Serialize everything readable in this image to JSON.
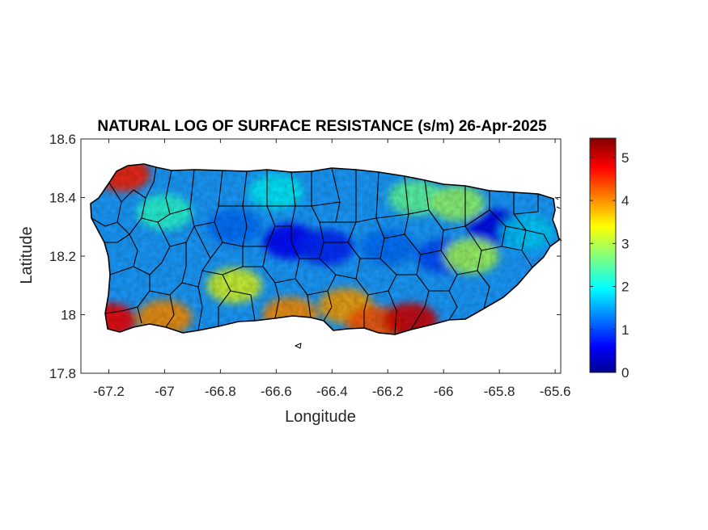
{
  "figure": {
    "title": "NATURAL LOG OF SURFACE RESISTANCE (s/m) 26-Apr-2025",
    "xlabel": "Longitude",
    "ylabel": "Latitude"
  },
  "chart_data": {
    "type": "heatmap",
    "title": "NATURAL LOG OF SURFACE RESISTANCE (s/m) 26-Apr-2025",
    "xlabel": "Longitude",
    "ylabel": "Latitude",
    "xlim": [
      -67.3,
      -65.58
    ],
    "ylim": [
      17.8,
      18.6
    ],
    "xticks": [
      -67.2,
      -67,
      -66.8,
      -66.6,
      -66.4,
      -66.2,
      -66,
      -65.8,
      -65.6
    ],
    "xtick_labels": [
      "-67.2",
      "-67",
      "-66.8",
      "-66.6",
      "-66.4",
      "-66.2",
      "-66",
      "-65.8",
      "-65.6"
    ],
    "yticks": [
      17.8,
      18,
      18.2,
      18.4,
      18.6
    ],
    "ytick_labels": [
      "17.8",
      "18",
      "18.2",
      "18.4",
      "18.6"
    ],
    "colormap": "jet",
    "colorbar": {
      "range": [
        0,
        5.45
      ],
      "ticks": [
        0,
        1,
        2,
        3,
        4,
        5
      ],
      "tick_labels": [
        "0",
        "1",
        "2",
        "3",
        "4",
        "5"
      ],
      "placement": "right"
    },
    "grid": false,
    "colors": {
      "low": "#00008f",
      "mid": "#00ffff",
      "high": "#800000",
      "boundaries": "#000000"
    },
    "regional_values": [
      {
        "lon": -67.15,
        "lat": 18.48,
        "value": 4.6
      },
      {
        "lon": -67.2,
        "lat": 17.98,
        "value": 4.8
      },
      {
        "lon": -67.0,
        "lat": 17.99,
        "value": 4.0
      },
      {
        "lon": -66.75,
        "lat": 18.1,
        "value": 3.2
      },
      {
        "lon": -66.55,
        "lat": 18.0,
        "value": 4.0
      },
      {
        "lon": -66.35,
        "lat": 18.03,
        "value": 3.9
      },
      {
        "lon": -66.25,
        "lat": 17.97,
        "value": 4.3
      },
      {
        "lon": -66.12,
        "lat": 17.98,
        "value": 5.0
      },
      {
        "lon": -66.55,
        "lat": 18.25,
        "value": 0.6
      },
      {
        "lon": -66.42,
        "lat": 18.23,
        "value": 0.8
      },
      {
        "lon": -66.2,
        "lat": 18.23,
        "value": 1.2
      },
      {
        "lon": -65.82,
        "lat": 18.3,
        "value": 0.5
      },
      {
        "lon": -66.0,
        "lat": 18.2,
        "value": 1.0
      },
      {
        "lon": -66.1,
        "lat": 18.4,
        "value": 2.5
      },
      {
        "lon": -65.95,
        "lat": 18.38,
        "value": 2.8
      },
      {
        "lon": -65.9,
        "lat": 18.2,
        "value": 2.9
      },
      {
        "lon": -66.6,
        "lat": 18.42,
        "value": 1.9
      },
      {
        "lon": -67.0,
        "lat": 18.35,
        "value": 2.2
      },
      {
        "lon": -65.7,
        "lat": 18.28,
        "value": 1.7
      },
      {
        "lon": -66.75,
        "lat": 18.3,
        "value": 1.2
      }
    ]
  }
}
